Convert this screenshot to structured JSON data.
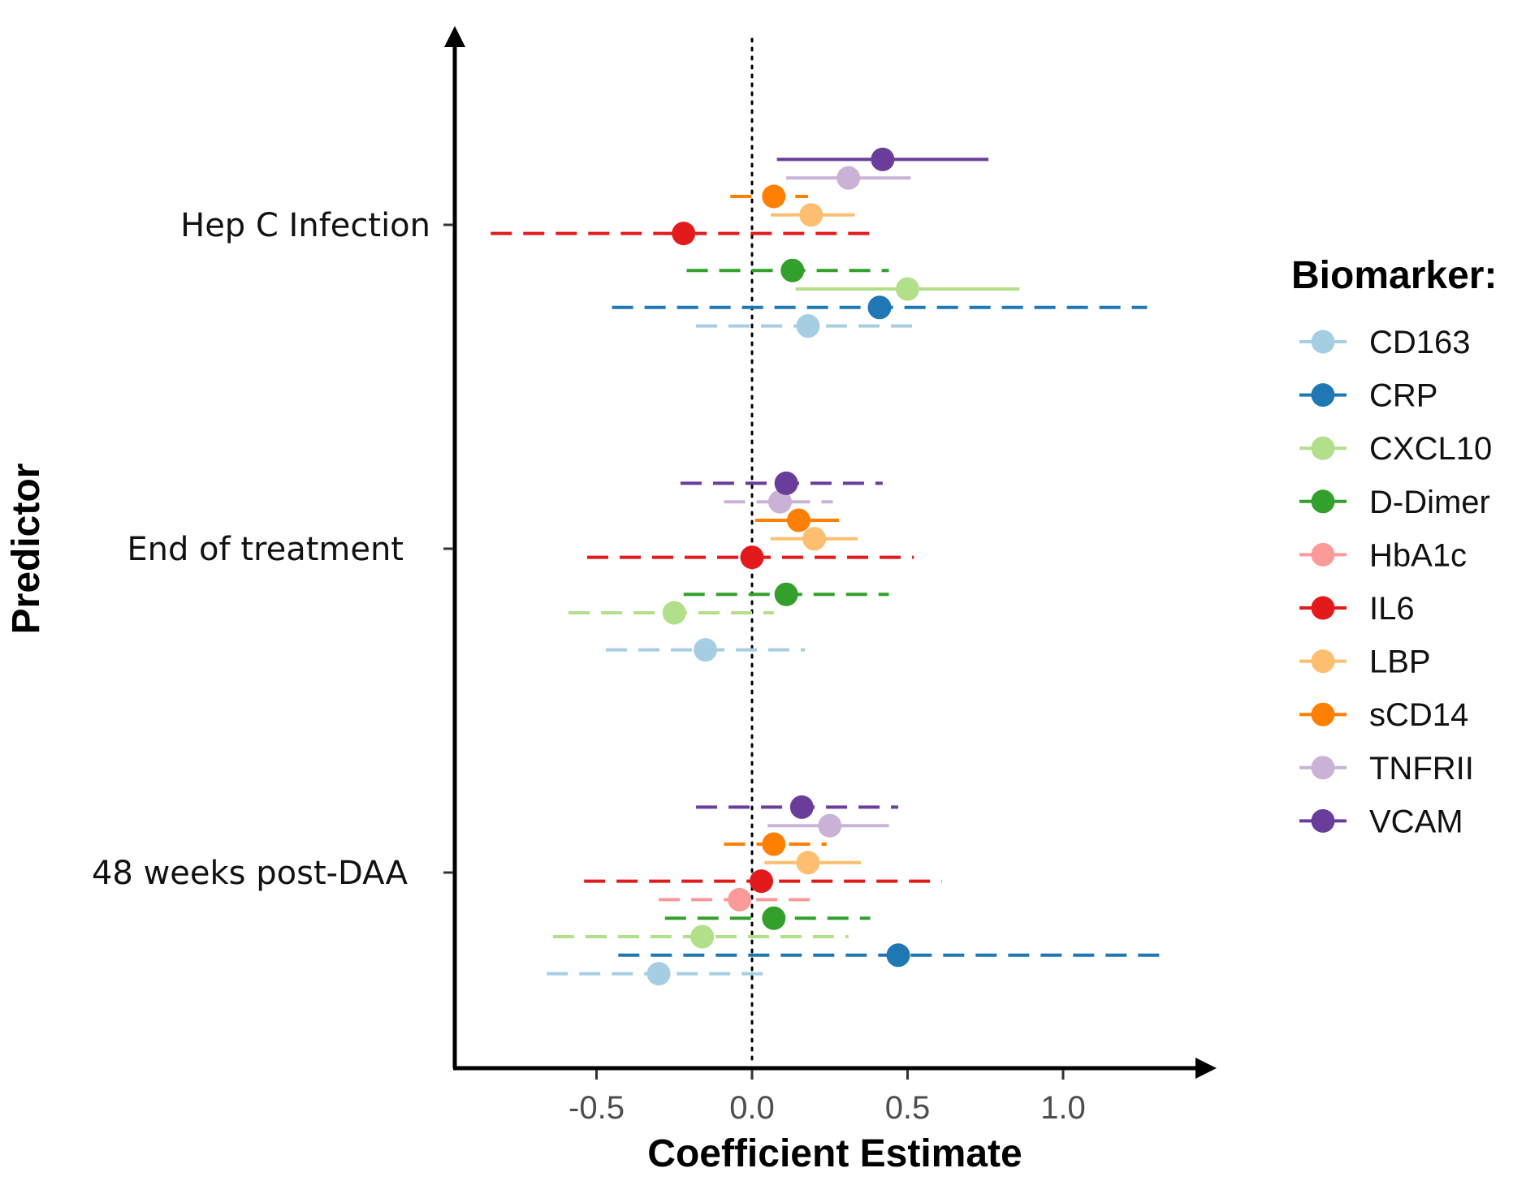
{
  "chart_data": {
    "type": "forest",
    "title": "",
    "xlabel": "Coefficient Estimate",
    "ylabel": "Predictor",
    "xlim": [
      -0.95,
      1.48
    ],
    "xticks": [
      -0.5,
      0.0,
      0.5,
      1.0
    ],
    "xtick_labels": [
      "-0.5",
      "0.0",
      "0.5",
      "1.0"
    ],
    "reference_line": 0,
    "categories": [
      "Hep C Infection",
      "End of treatment",
      "48 weeks post-DAA"
    ],
    "legend_title": "Biomarker:",
    "legend_position": "right",
    "series": [
      {
        "name": "CD163",
        "color": "#a6cee3",
        "linestyle": [
          "dashed",
          "dashed",
          "dashed"
        ],
        "estimates": [
          0.18,
          -0.15,
          -0.3
        ],
        "lower": [
          -0.18,
          -0.47,
          -0.66
        ],
        "upper": [
          0.55,
          0.17,
          0.05
        ]
      },
      {
        "name": "CRP",
        "color": "#1f78b4",
        "linestyle": [
          "dashed",
          null,
          "dashed"
        ],
        "estimates": [
          0.41,
          null,
          0.47
        ],
        "lower": [
          -0.45,
          null,
          -0.43
        ],
        "upper": [
          1.27,
          null,
          1.34
        ]
      },
      {
        "name": "CXCL10",
        "color": "#b2df8a",
        "linestyle": [
          "solid",
          "dashed",
          "dashed"
        ],
        "estimates": [
          0.5,
          -0.25,
          -0.16
        ],
        "lower": [
          0.14,
          -0.59,
          -0.64
        ],
        "upper": [
          0.86,
          0.07,
          0.31
        ]
      },
      {
        "name": "D-Dimer",
        "color": "#33a02c",
        "linestyle": [
          "dashed",
          "dashed",
          "dashed"
        ],
        "estimates": [
          0.13,
          0.11,
          0.07
        ],
        "lower": [
          -0.21,
          -0.22,
          -0.28
        ],
        "upper": [
          0.44,
          0.44,
          0.38
        ]
      },
      {
        "name": "HbA1c",
        "color": "#fb9a99",
        "linestyle": [
          null,
          null,
          "dashed"
        ],
        "estimates": [
          null,
          null,
          -0.04
        ],
        "lower": [
          null,
          null,
          -0.3
        ],
        "upper": [
          null,
          null,
          0.21
        ]
      },
      {
        "name": "IL6",
        "color": "#e31a1c",
        "linestyle": [
          "dashed",
          "dashed",
          "dashed"
        ],
        "estimates": [
          -0.22,
          0.0,
          0.03
        ],
        "lower": [
          -0.84,
          -0.53,
          -0.54
        ],
        "upper": [
          0.39,
          0.52,
          0.61
        ]
      },
      {
        "name": "LBP",
        "color": "#fdbf6f",
        "linestyle": [
          "solid",
          "solid",
          "solid"
        ],
        "estimates": [
          0.19,
          0.2,
          0.18
        ],
        "lower": [
          0.06,
          0.06,
          0.04
        ],
        "upper": [
          0.33,
          0.34,
          0.35
        ]
      },
      {
        "name": "sCD14",
        "color": "#ff7f00",
        "linestyle": [
          "dashed",
          "solid",
          "dashed"
        ],
        "estimates": [
          0.07,
          0.15,
          0.07
        ],
        "lower": [
          -0.07,
          0.01,
          -0.09
        ],
        "upper": [
          0.18,
          0.28,
          0.24
        ]
      },
      {
        "name": "TNFRII",
        "color": "#cab2d6",
        "linestyle": [
          "solid",
          "dashed",
          "solid"
        ],
        "estimates": [
          0.31,
          0.09,
          0.25
        ],
        "lower": [
          0.11,
          -0.09,
          0.05
        ],
        "upper": [
          0.51,
          0.26,
          0.44
        ]
      },
      {
        "name": "VCAM",
        "color": "#6a3d9a",
        "linestyle": [
          "solid",
          "dashed",
          "dashed"
        ],
        "estimates": [
          0.42,
          0.11,
          0.16
        ],
        "lower": [
          0.08,
          -0.23,
          -0.18
        ],
        "upper": [
          0.76,
          0.42,
          0.47
        ]
      }
    ]
  }
}
